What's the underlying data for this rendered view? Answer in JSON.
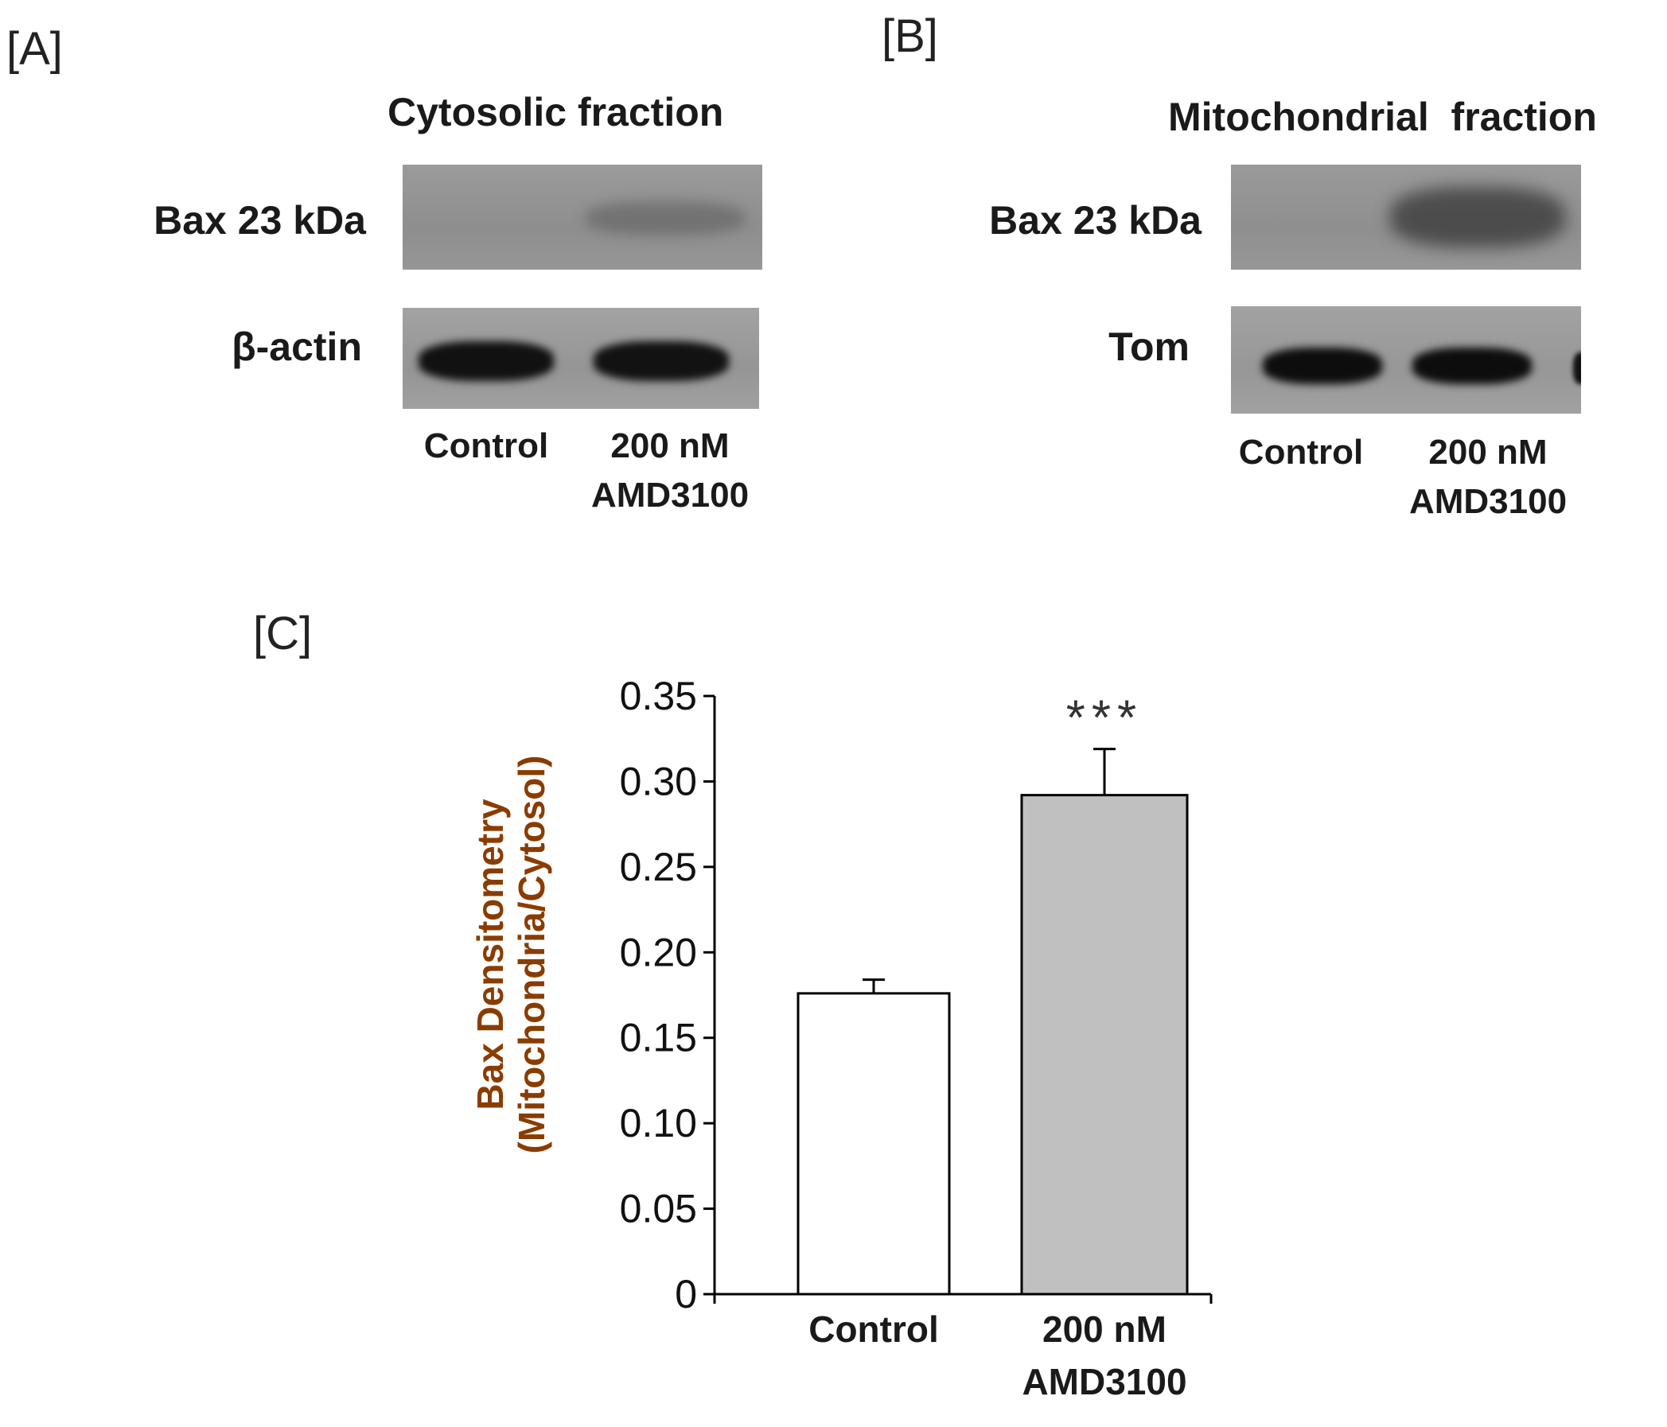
{
  "panels": {
    "a": {
      "label": "[A]",
      "title": "Cytosolic fraction",
      "rows": [
        "Bax 23 kDa",
        "β-actin"
      ],
      "lanes": [
        "Control",
        "200 nM",
        "AMD3100"
      ]
    },
    "b": {
      "label": "[B]",
      "title": "Mitochondrial  fraction",
      "rows": [
        "Bax 23 kDa",
        "Tom"
      ],
      "lanes": [
        "Control",
        "200 nM",
        "AMD3100"
      ]
    },
    "c": {
      "label": "[C]"
    }
  },
  "chart_data": {
    "type": "bar",
    "categories": [
      "Control",
      "200 nM AMD3100"
    ],
    "category_lines": [
      [
        "Control"
      ],
      [
        "200 nM",
        "AMD3100"
      ]
    ],
    "values": [
      0.176,
      0.292
    ],
    "errors": [
      0.008,
      0.027
    ],
    "bar_colors": [
      "#ffffff",
      "#c0c0c0"
    ],
    "significance": [
      "",
      "***"
    ],
    "ylabel_lines": [
      "Bax Densitometry",
      "(Mitochondria/Cytosol)"
    ],
    "ylabel_color": "#8a3c00",
    "xlabel": "",
    "ylim": [
      0,
      0.35
    ],
    "yticks": [
      0,
      0.05,
      0.1,
      0.15,
      0.2,
      0.25,
      0.3,
      0.35
    ],
    "ytick_labels": [
      "0",
      "0.05",
      "0.10",
      "0.15",
      "0.20",
      "0.25",
      "0.30",
      "0.35"
    ],
    "grid": false,
    "legend": "none"
  }
}
